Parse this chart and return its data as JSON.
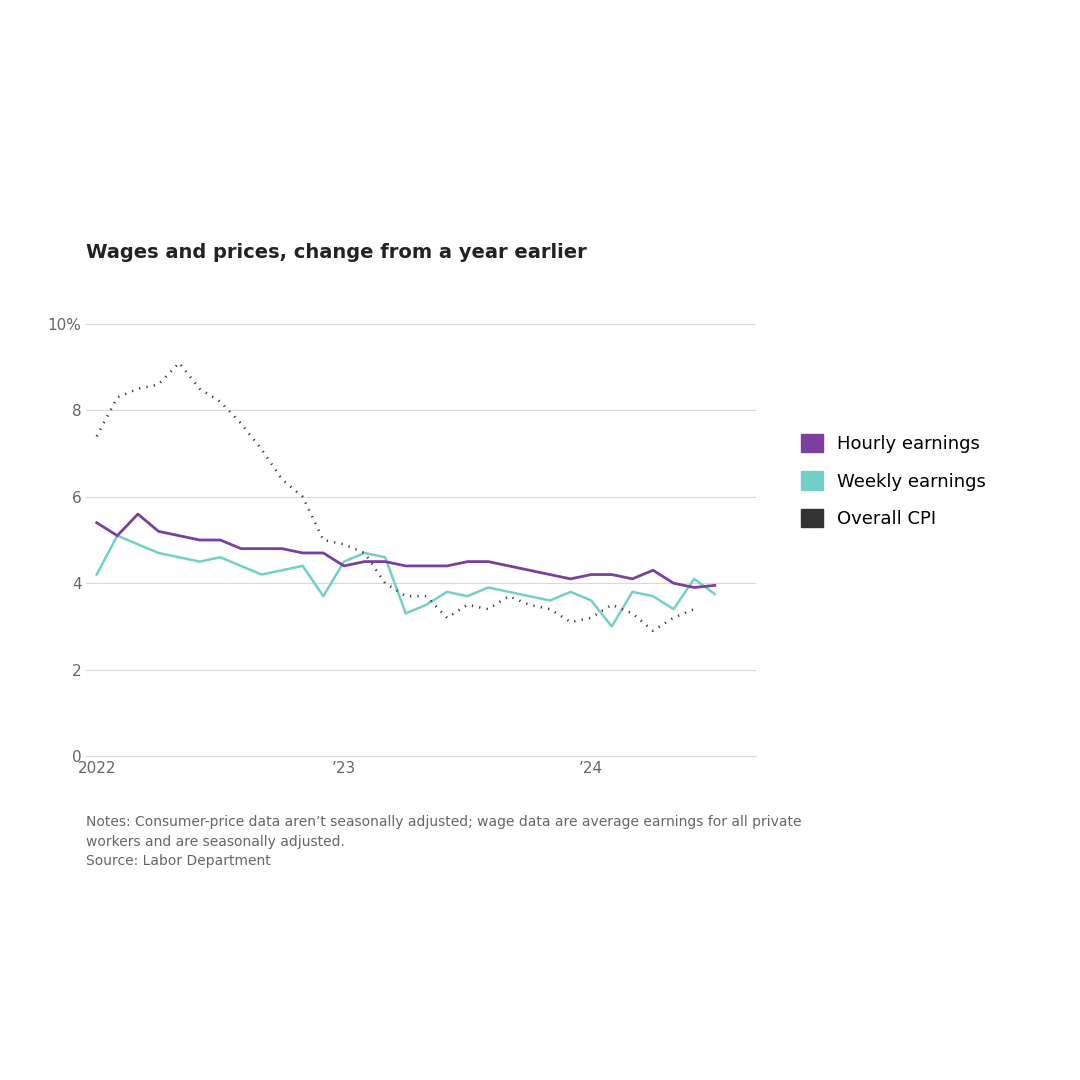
{
  "title": "Wages and prices, change from a year earlier",
  "notes": "Notes: Consumer-price data aren’t seasonally adjusted; wage data are average earnings for all private\nworkers and are seasonally adjusted.\nSource: Labor Department",
  "ylim": [
    0,
    10.5
  ],
  "yticks": [
    0,
    2,
    4,
    6,
    8,
    10
  ],
  "ytick_labels": [
    "0",
    "2",
    "4",
    "6",
    "8",
    "10%"
  ],
  "x_tick_positions": [
    0,
    12,
    24
  ],
  "x_tick_labels": [
    "2022",
    "’23",
    "’24"
  ],
  "hourly_earnings": [
    5.4,
    5.1,
    5.6,
    5.2,
    5.1,
    5.0,
    5.0,
    4.8,
    4.8,
    4.8,
    4.7,
    4.7,
    4.4,
    4.5,
    4.5,
    4.4,
    4.4,
    4.4,
    4.5,
    4.5,
    4.4,
    4.3,
    4.2,
    4.1,
    4.2,
    4.2,
    4.1,
    4.3,
    4.0,
    3.9,
    3.95
  ],
  "weekly_earnings": [
    4.2,
    5.1,
    4.9,
    4.7,
    4.6,
    4.5,
    4.6,
    4.4,
    4.2,
    4.3,
    4.4,
    3.7,
    4.5,
    4.7,
    4.6,
    3.3,
    3.5,
    3.8,
    3.7,
    3.9,
    3.8,
    3.7,
    3.6,
    3.8,
    3.6,
    3.0,
    3.8,
    3.7,
    3.4,
    4.1,
    3.75
  ],
  "overall_cpi": [
    7.4,
    8.3,
    8.5,
    8.6,
    9.1,
    8.5,
    8.2,
    7.7,
    7.1,
    6.4,
    6.0,
    5.0,
    4.9,
    4.7,
    4.0,
    3.7,
    3.7,
    3.2,
    3.5,
    3.4,
    3.7,
    3.5,
    3.4,
    3.1,
    3.2,
    3.5,
    3.3,
    2.9,
    3.2,
    3.4
  ],
  "hourly_color": "#7B3FA0",
  "weekly_color": "#73D0C9",
  "cpi_color": "#333333",
  "grid_color": "#D9D9D9",
  "background_color": "#FFFFFF",
  "legend_labels": [
    "Hourly earnings",
    "Weekly earnings",
    "Overall CPI"
  ],
  "title_fontsize": 14,
  "tick_fontsize": 11,
  "legend_fontsize": 13,
  "note_fontsize": 10
}
